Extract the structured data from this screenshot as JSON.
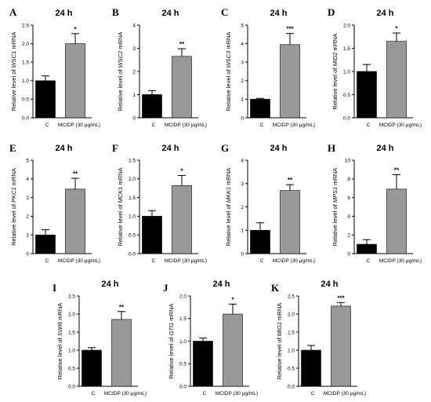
{
  "chart_data": [
    {
      "letter": "A",
      "type": "bar",
      "title": "24 h",
      "ylabel_prefix": "Relative level of ",
      "ylabel_gene": "WSC1",
      "ylabel_suffix": " mRNA",
      "categories": [
        "C",
        "MCIDP (30 μg/mL)"
      ],
      "values": [
        1.0,
        2.0
      ],
      "errors": [
        0.13,
        0.27
      ],
      "significance": "*",
      "ylim": [
        0,
        2.5
      ],
      "yticks": [
        "0.0",
        "0.5",
        "1.0",
        "1.5",
        "2.0",
        "2.5"
      ],
      "bar_colors": [
        "#000000",
        "#999999"
      ]
    },
    {
      "letter": "B",
      "type": "bar",
      "title": "24 h",
      "ylabel_prefix": "Relative level of ",
      "ylabel_gene": "WSC2",
      "ylabel_suffix": " mRNA",
      "categories": [
        "C",
        "MCIDP (30 μg/mL)"
      ],
      "values": [
        1.0,
        2.65
      ],
      "errors": [
        0.17,
        0.33
      ],
      "significance": "**",
      "ylim": [
        0,
        4
      ],
      "yticks": [
        "0",
        "1",
        "2",
        "3",
        "4"
      ],
      "bar_colors": [
        "#000000",
        "#999999"
      ]
    },
    {
      "letter": "C",
      "type": "bar",
      "title": "24 h",
      "ylabel_prefix": "Relative level of ",
      "ylabel_gene": "WSC3",
      "ylabel_suffix": " mRNA",
      "categories": [
        "C",
        "MCIDP (30 μg/mL)"
      ],
      "values": [
        1.0,
        3.95
      ],
      "errors": [
        0.05,
        0.6
      ],
      "significance": "***",
      "ylim": [
        0,
        5
      ],
      "yticks": [
        "0",
        "1",
        "2",
        "3",
        "4",
        "5"
      ],
      "bar_colors": [
        "#000000",
        "#999999"
      ]
    },
    {
      "letter": "D",
      "type": "bar",
      "title": "24 h",
      "ylabel_prefix": "Relative level of ",
      "ylabel_gene": "MID2",
      "ylabel_suffix": " mRNA",
      "categories": [
        "C",
        "MCIDP (30 μg/mL)"
      ],
      "values": [
        1.0,
        1.65
      ],
      "errors": [
        0.15,
        0.18
      ],
      "significance": "*",
      "ylim": [
        0,
        2.0
      ],
      "yticks": [
        "0.0",
        "0.5",
        "1.0",
        "1.5",
        "2.0"
      ],
      "bar_colors": [
        "#000000",
        "#999999"
      ]
    },
    {
      "letter": "E",
      "type": "bar",
      "title": "24 h",
      "ylabel_prefix": "Relative level of ",
      "ylabel_gene": "PKC1",
      "ylabel_suffix": " mRNA",
      "categories": [
        "C",
        "MCIDP (30 μg/mL)"
      ],
      "values": [
        1.0,
        3.45
      ],
      "errors": [
        0.28,
        0.58
      ],
      "significance": "**",
      "ylim": [
        0,
        5
      ],
      "yticks": [
        "0",
        "1",
        "2",
        "3",
        "4",
        "5"
      ],
      "bar_colors": [
        "#000000",
        "#999999"
      ]
    },
    {
      "letter": "F",
      "type": "bar",
      "title": "24 h",
      "ylabel_prefix": "Relative level of ",
      "ylabel_gene": "MCK1",
      "ylabel_suffix": " mRNA",
      "categories": [
        "C",
        "MCIDP (30 μg/mL)"
      ],
      "values": [
        1.0,
        1.82
      ],
      "errors": [
        0.15,
        0.27
      ],
      "significance": "*",
      "ylim": [
        0,
        2.5
      ],
      "yticks": [
        "0.0",
        "0.5",
        "1.0",
        "1.5",
        "2.0",
        "2.5"
      ],
      "bar_colors": [
        "#000000",
        "#999999"
      ]
    },
    {
      "letter": "G",
      "type": "bar",
      "title": "24 h",
      "ylabel_prefix": "Relative level of ",
      "ylabel_gene": "MKK1",
      "ylabel_suffix": " mRNA",
      "categories": [
        "C",
        "MCIDP (30 μg/mL)"
      ],
      "values": [
        1.0,
        2.7
      ],
      "errors": [
        0.32,
        0.25
      ],
      "significance": "**",
      "ylim": [
        0,
        4
      ],
      "yticks": [
        "0",
        "1",
        "2",
        "3",
        "4"
      ],
      "bar_colors": [
        "#000000",
        "#999999"
      ]
    },
    {
      "letter": "H",
      "type": "bar",
      "title": "24 h",
      "ylabel_prefix": "Relative level of ",
      "ylabel_gene": "MPS1",
      "ylabel_suffix": " mRNA",
      "categories": [
        "C",
        "MCIDP (30 μg/mL)"
      ],
      "values": [
        1.0,
        6.9
      ],
      "errors": [
        0.5,
        1.55
      ],
      "significance": "**",
      "ylim": [
        0,
        10
      ],
      "yticks": [
        "0",
        "2",
        "4",
        "6",
        "8",
        "10"
      ],
      "bar_colors": [
        "#000000",
        "#999999"
      ]
    },
    {
      "letter": "I",
      "type": "bar",
      "title": "24 h",
      "ylabel_prefix": "Relative level of ",
      "ylabel_gene": "SWI6",
      "ylabel_suffix": " mRNA",
      "categories": [
        "C",
        "MCIDP (30 μg/mL)"
      ],
      "values": [
        1.0,
        1.85
      ],
      "errors": [
        0.07,
        0.22
      ],
      "significance": "**",
      "ylim": [
        0,
        2.5
      ],
      "yticks": [
        "0.0",
        "0.5",
        "1.0",
        "1.5",
        "2.0",
        "2.5"
      ],
      "bar_colors": [
        "#000000",
        "#999999"
      ]
    },
    {
      "letter": "J",
      "type": "bar",
      "title": "24 h",
      "ylabel_prefix": "Relative level of ",
      "ylabel_gene": "GTI1",
      "ylabel_suffix": " mRNA",
      "categories": [
        "C",
        "MCIDP (30 μg/mL)"
      ],
      "values": [
        1.0,
        1.6
      ],
      "errors": [
        0.07,
        0.22
      ],
      "significance": "*",
      "ylim": [
        0,
        2.0
      ],
      "yticks": [
        "0.0",
        "0.5",
        "1.0",
        "1.5",
        "2.0"
      ],
      "bar_colors": [
        "#000000",
        "#999999"
      ]
    },
    {
      "letter": "K",
      "type": "bar",
      "title": "24 h",
      "ylabel_prefix": "Relative level of ",
      "ylabel_gene": "MIG1",
      "ylabel_suffix": " mRNA",
      "categories": [
        "C",
        "MCIDP (30 μg/mL)"
      ],
      "values": [
        1.0,
        2.22
      ],
      "errors": [
        0.13,
        0.1
      ],
      "significance": "***",
      "ylim": [
        0,
        2.5
      ],
      "yticks": [
        "0.0",
        "0.5",
        "1.0",
        "1.5",
        "2.0",
        "2.5"
      ],
      "bar_colors": [
        "#000000",
        "#999999"
      ]
    }
  ]
}
